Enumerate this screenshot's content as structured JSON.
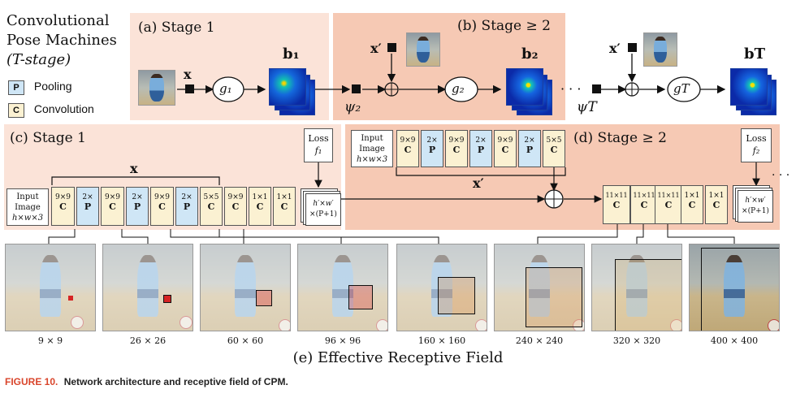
{
  "title_lines": [
    "Convolutional",
    "Pose Machines",
    "(T-stage)"
  ],
  "legend": {
    "pooling": {
      "glyph": "P",
      "label": "Pooling"
    },
    "convolution": {
      "glyph": "C",
      "label": "Convolution"
    }
  },
  "top": {
    "stage1_label": "(a) Stage 1",
    "stage2_label": "(b) Stage ≥ 2",
    "x": "x",
    "x_prime": "x′",
    "g1": "g₁",
    "g2": "g₂",
    "gT": "gT",
    "b1": "b₁",
    "b2": "b₂",
    "bT": "bT",
    "psi2": "ψ₂",
    "psiT": "ψT",
    "dots": "· · ·"
  },
  "mid": {
    "stage1_label": "(c) Stage 1",
    "stage2_label": "(d) Stage ≥ 2",
    "x": "x",
    "x_prime": "x′",
    "input_image": [
      "Input",
      "Image",
      "h×w×3"
    ],
    "loss1": [
      "Loss",
      "f₁"
    ],
    "loss2": [
      "Loss",
      "f₂"
    ],
    "output_stack": [
      "h′×w′",
      "×(P+1)"
    ],
    "stage1_blocks": [
      {
        "size": "9×9",
        "type": "C"
      },
      {
        "size": "2×",
        "type": "P"
      },
      {
        "size": "9×9",
        "type": "C"
      },
      {
        "size": "2×",
        "type": "P"
      },
      {
        "size": "9×9",
        "type": "C"
      },
      {
        "size": "2×",
        "type": "P"
      },
      {
        "size": "5×5",
        "type": "C"
      },
      {
        "size": "9×9",
        "type": "C"
      },
      {
        "size": "1×1",
        "type": "C"
      },
      {
        "size": "1×1",
        "type": "C"
      }
    ],
    "stage2_feature_blocks": [
      {
        "size": "9×9",
        "type": "C"
      },
      {
        "size": "2×",
        "type": "P"
      },
      {
        "size": "9×9",
        "type": "C"
      },
      {
        "size": "2×",
        "type": "P"
      },
      {
        "size": "9×9",
        "type": "C"
      },
      {
        "size": "2×",
        "type": "P"
      },
      {
        "size": "5×5",
        "type": "C"
      }
    ],
    "stage2_blocks": [
      {
        "size": "11×11",
        "type": "C"
      },
      {
        "size": "11×11",
        "type": "C"
      },
      {
        "size": "11×11",
        "type": "C"
      },
      {
        "size": "1×1",
        "type": "C"
      },
      {
        "size": "1×1",
        "type": "C"
      }
    ]
  },
  "receptive_fields": [
    "9 × 9",
    "26 × 26",
    "60 × 60",
    "96 × 96",
    "160 × 160",
    "240 × 240",
    "320 × 320",
    "400 × 400"
  ],
  "section_e_label": "(e) Effective Receptive Field",
  "caption": {
    "prefix": "FIGURE 10.",
    "text": "Network architecture and receptive field of CPM."
  },
  "colors": {
    "stage1_bg": "#fbe3d8",
    "stage2_bg": "#f6c9b4",
    "conv_block": "#fbf1d2",
    "pool_block": "#cfe6f6",
    "caption_accent": "#d9452b"
  }
}
